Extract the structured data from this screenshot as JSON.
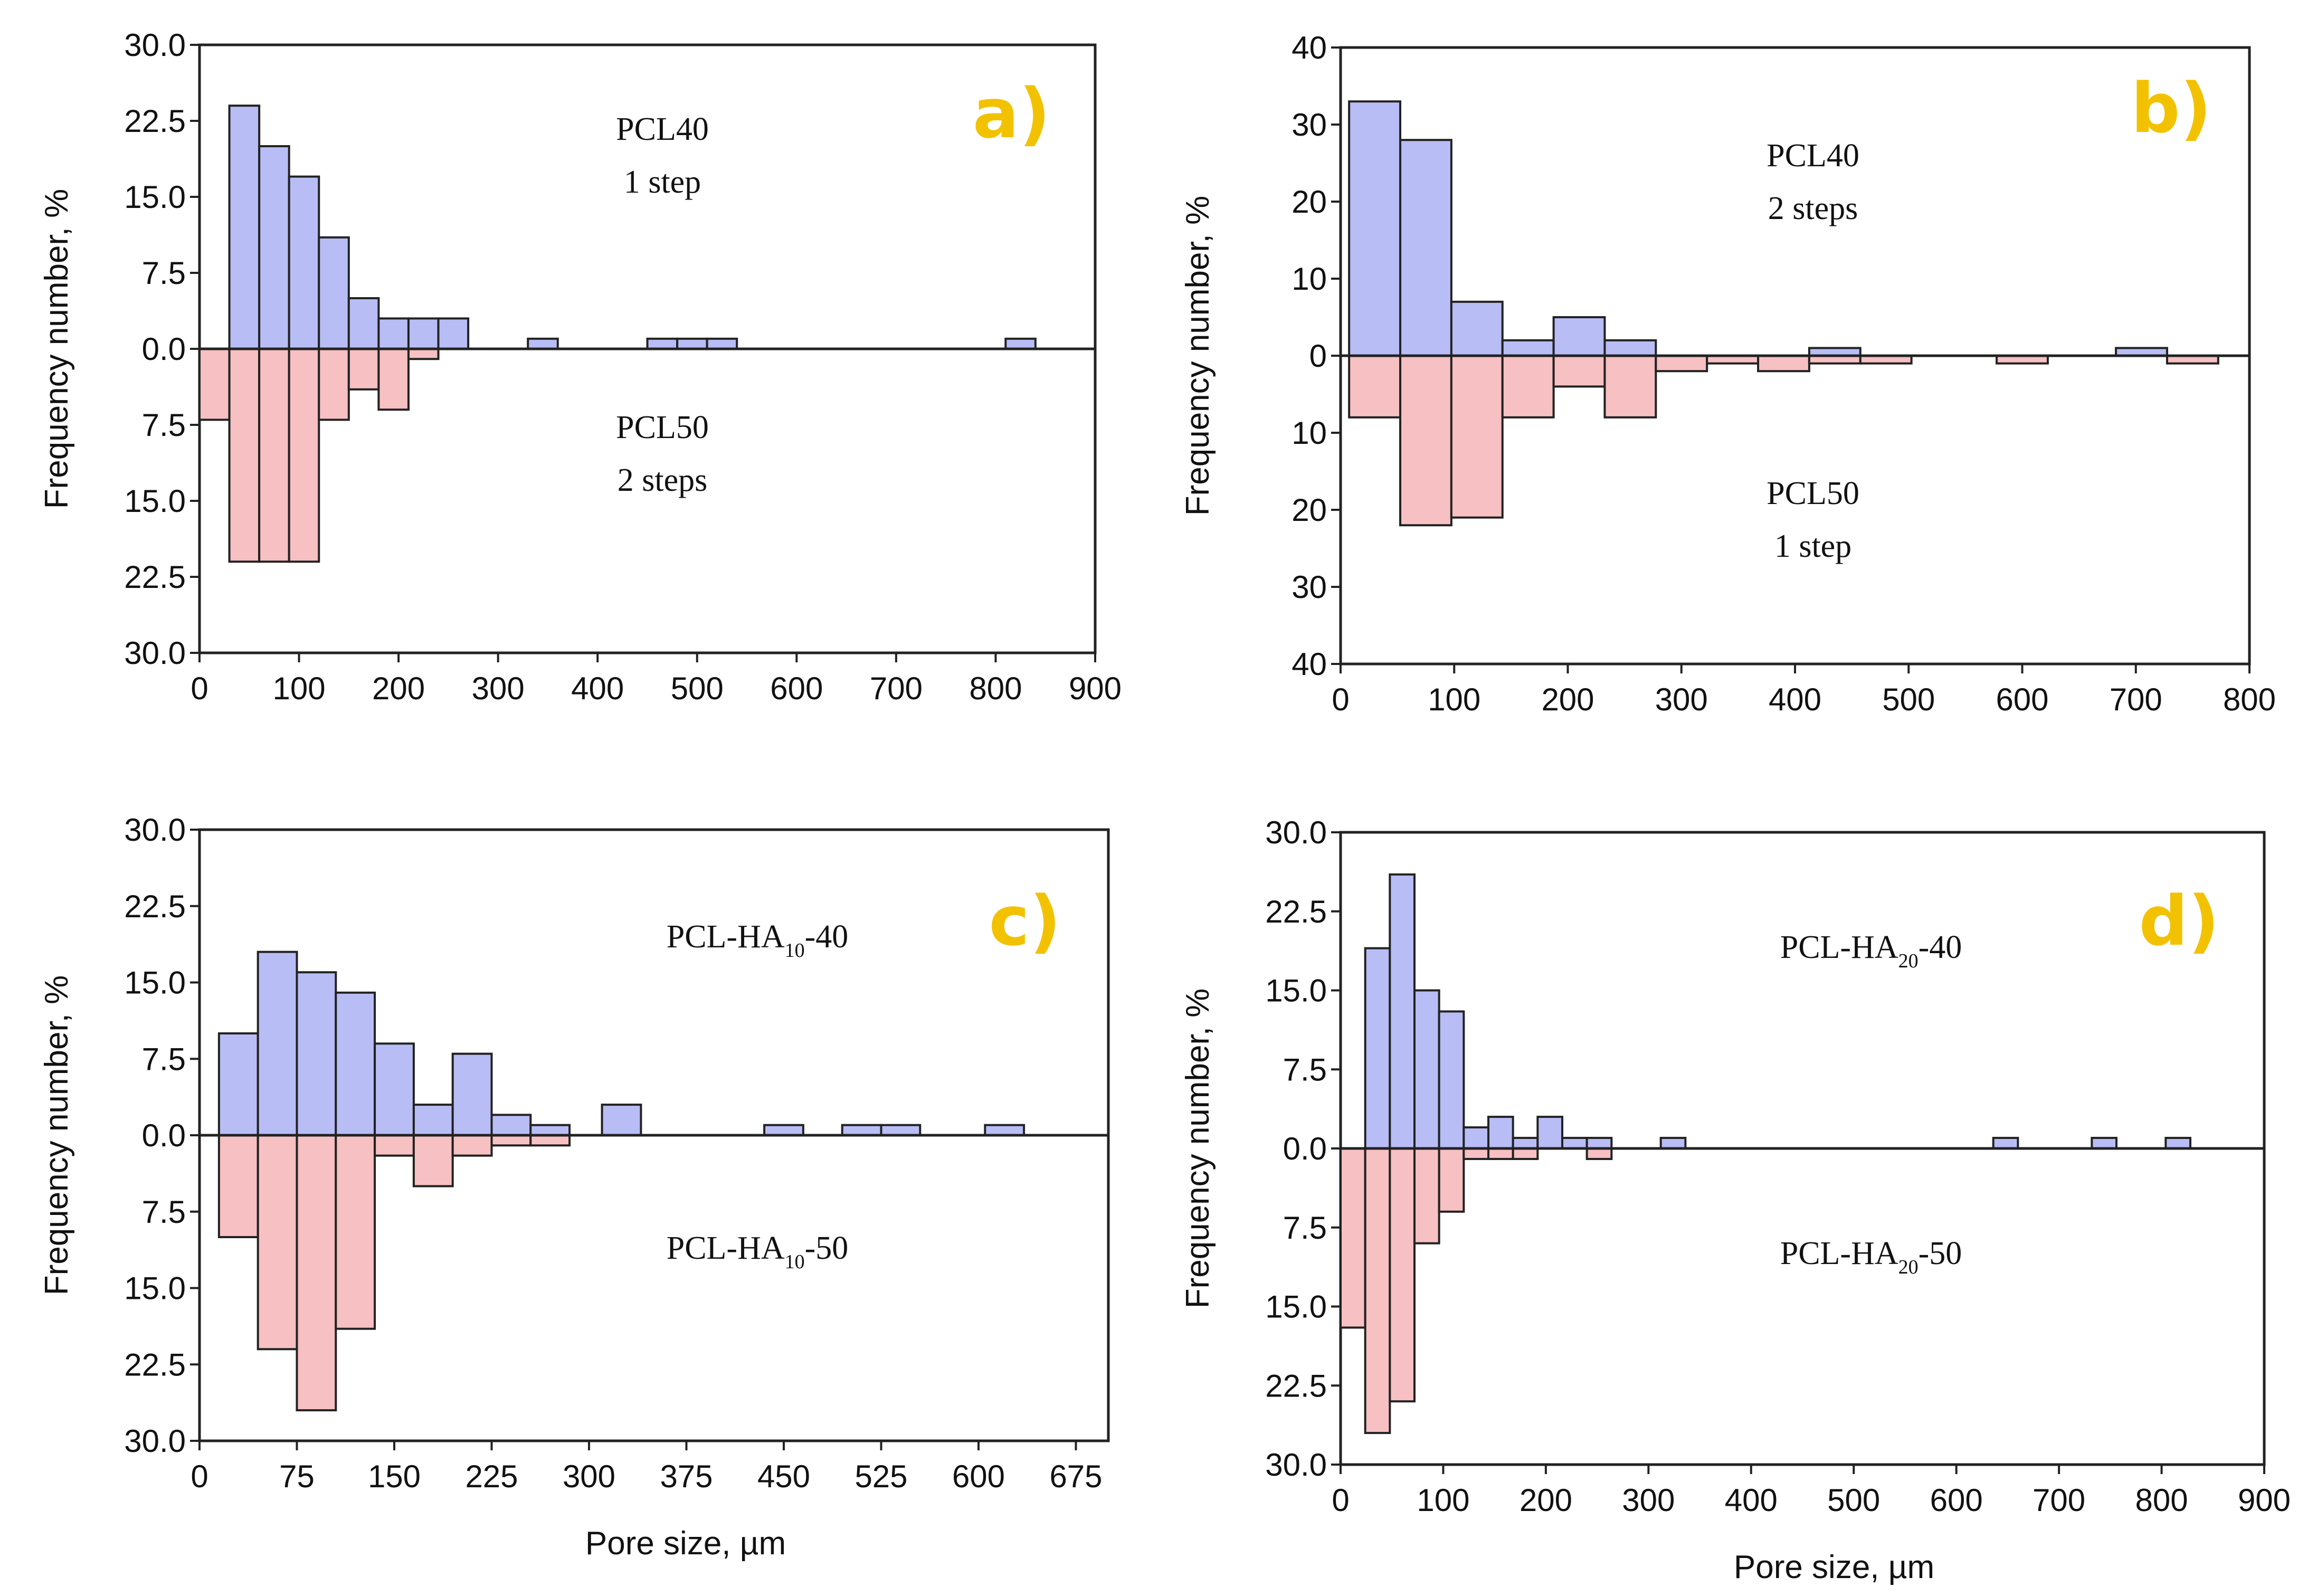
{
  "chart_data": [
    {
      "type": "bar",
      "panel": "a)",
      "xlabel": "",
      "ylabel": "Frequency number, %",
      "xlim": [
        0,
        900
      ],
      "ylim": [
        -30,
        30
      ],
      "bin_width": 30,
      "x_ticks": [
        "0",
        "100",
        "200",
        "300",
        "400",
        "500",
        "600",
        "700",
        "800",
        "900"
      ],
      "y_ticks": [
        "30.0",
        "22.5",
        "15.0",
        "7.5",
        "0.0",
        "7.5",
        "15.0",
        "22.5",
        "30.0"
      ],
      "top_label": [
        "PCL40",
        "1 step"
      ],
      "bottom_label": [
        "PCL50",
        "2 steps"
      ],
      "series": [
        {
          "name": "PCL40 1 step",
          "direction": "up",
          "color": "#b8bdf6",
          "x": [
            45,
            75,
            105,
            135,
            165,
            195,
            225,
            255,
            345,
            465,
            495,
            525,
            825
          ],
          "values": [
            24,
            20,
            17,
            11,
            5,
            3,
            3,
            3,
            1,
            1,
            1,
            1,
            1
          ]
        },
        {
          "name": "PCL50 2 steps",
          "direction": "down",
          "color": "#f7c0c2",
          "x": [
            15,
            45,
            75,
            105,
            135,
            165,
            195,
            225
          ],
          "values": [
            7,
            21,
            21,
            21,
            7,
            4,
            6,
            1
          ]
        }
      ]
    },
    {
      "type": "bar",
      "panel": "b)",
      "xlabel": "",
      "ylabel": "Frequency number, %",
      "xlim": [
        0,
        800
      ],
      "ylim": [
        -40,
        40
      ],
      "bin_width": 45,
      "x_ticks": [
        "0",
        "100",
        "200",
        "300",
        "400",
        "500",
        "600",
        "700",
        "800"
      ],
      "y_ticks": [
        "40",
        "30",
        "20",
        "10",
        "0",
        "10",
        "20",
        "30",
        "40"
      ],
      "top_label": [
        "PCL40",
        "2 steps"
      ],
      "bottom_label": [
        "PCL50",
        "1 step"
      ],
      "series": [
        {
          "name": "PCL40 2 steps",
          "direction": "up",
          "color": "#b8bdf6",
          "x": [
            30,
            75,
            120,
            165,
            210,
            255,
            435,
            705
          ],
          "values": [
            33,
            28,
            7,
            2,
            5,
            2,
            1,
            1
          ]
        },
        {
          "name": "PCL50 1 step",
          "direction": "down",
          "color": "#f7c0c2",
          "x": [
            30,
            75,
            120,
            165,
            210,
            255,
            300,
            345,
            390,
            435,
            480,
            600,
            750
          ],
          "values": [
            8,
            22,
            21,
            8,
            4,
            8,
            2,
            1,
            2,
            1,
            1,
            1,
            1
          ]
        }
      ]
    },
    {
      "type": "bar",
      "panel": "c)",
      "xlabel": "Pore size, µm",
      "ylabel": "Frequency number, %",
      "xlim": [
        0,
        700
      ],
      "ylim": [
        -30,
        30
      ],
      "bin_width": 30,
      "x_ticks": [
        "0",
        "75",
        "150",
        "225",
        "300",
        "375",
        "450",
        "525",
        "600",
        "675"
      ],
      "x_tick_values": [
        0,
        75,
        150,
        225,
        300,
        375,
        450,
        525,
        600,
        675
      ],
      "y_ticks": [
        "30.0",
        "22.5",
        "15.0",
        "7.5",
        "0.0",
        "7.5",
        "15.0",
        "22.5",
        "30.0"
      ],
      "top_label": {
        "prefix": "PCL-HA",
        "sub": "10",
        "suffix": "-40"
      },
      "bottom_label": {
        "prefix": "PCL-HA",
        "sub": "10",
        "suffix": "-50"
      },
      "series": [
        {
          "name": "PCL-HA10-40",
          "direction": "up",
          "color": "#b8bdf6",
          "x": [
            30,
            60,
            90,
            120,
            150,
            180,
            210,
            240,
            270,
            325,
            450,
            510,
            540,
            620
          ],
          "values": [
            10,
            18,
            16,
            14,
            9,
            3,
            8,
            2,
            1,
            3,
            1,
            1,
            1,
            1
          ]
        },
        {
          "name": "PCL-HA10-50",
          "direction": "down",
          "color": "#f7c0c2",
          "x": [
            30,
            60,
            90,
            120,
            150,
            180,
            210,
            240,
            270
          ],
          "values": [
            10,
            21,
            27,
            19,
            2,
            5,
            2,
            1,
            1
          ]
        }
      ]
    },
    {
      "type": "bar",
      "panel": "d)",
      "xlabel": "Pore size, µm",
      "ylabel": "Frequency number, %",
      "xlim": [
        0,
        900
      ],
      "ylim": [
        -30,
        30
      ],
      "bin_width": 24,
      "x_ticks": [
        "0",
        "100",
        "200",
        "300",
        "400",
        "500",
        "600",
        "700",
        "800",
        "900"
      ],
      "y_ticks": [
        "30.0",
        "22.5",
        "15.0",
        "7.5",
        "0.0",
        "7.5",
        "15.0",
        "22.5",
        "30.0"
      ],
      "top_label": {
        "prefix": "PCL-HA",
        "sub": "20",
        "suffix": "-40"
      },
      "bottom_label": {
        "prefix": "PCL-HA",
        "sub": "20",
        "suffix": "-50"
      },
      "series": [
        {
          "name": "PCL-HA20-40",
          "direction": "up",
          "color": "#b8bdf6",
          "x": [
            36,
            60,
            84,
            108,
            132,
            156,
            180,
            204,
            228,
            252,
            324,
            648,
            744,
            816
          ],
          "values": [
            19,
            26,
            15,
            13,
            2,
            3,
            1,
            3,
            1,
            1,
            1,
            1,
            1,
            1
          ]
        },
        {
          "name": "PCL-HA20-50",
          "direction": "down",
          "color": "#f7c0c2",
          "x": [
            12,
            36,
            60,
            84,
            108,
            132,
            156,
            180,
            252
          ],
          "values": [
            17,
            27,
            24,
            9,
            6,
            1,
            1,
            1,
            1
          ]
        }
      ]
    }
  ]
}
